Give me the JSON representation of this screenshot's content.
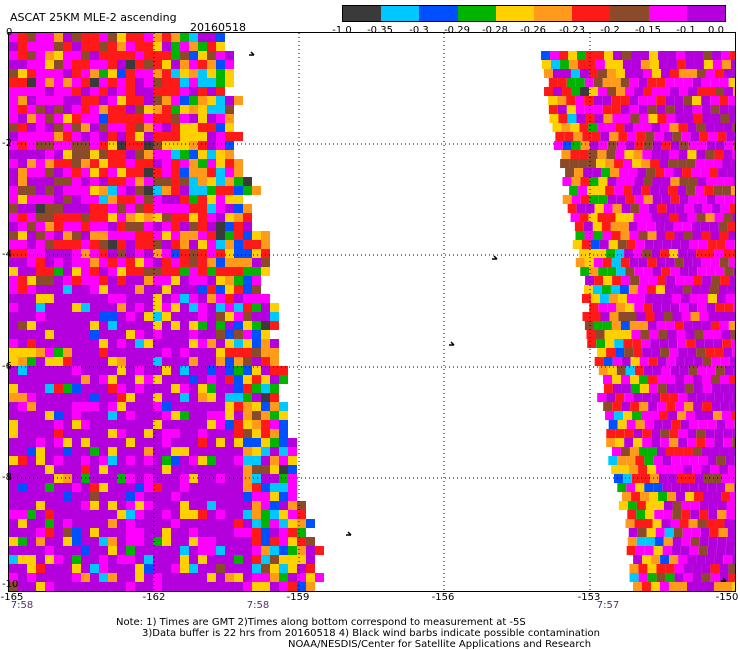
{
  "header": {
    "title": "ASCAT 25KM MLE-2 ascending",
    "date": "20160518"
  },
  "colorbar": {
    "labels": [
      "-1.0",
      "-0.35",
      "-0.3",
      "-0.29",
      "-0.28",
      "-0.26",
      "-0.23",
      "-0.2",
      "-0.15",
      "-0.1",
      "0.0"
    ],
    "colors": [
      "#3a3a3a",
      "#00c8ff",
      "#0050ff",
      "#00b400",
      "#ffd000",
      "#ff9a1a",
      "#ff1a1a",
      "#8b4a2a",
      "#ff00ff",
      "#b400dc"
    ]
  },
  "map": {
    "y_labels": [
      "0",
      "-2",
      "-4",
      "-6",
      "-8",
      "-10"
    ],
    "x_labels": [
      "-165",
      "-162",
      "-159",
      "-156",
      "-153",
      "-150"
    ],
    "lat_range": [
      -10,
      0
    ],
    "lon_range": [
      -165,
      -150
    ],
    "grid": "dotted",
    "times": [
      "7:58",
      "7:58",
      "7:57"
    ]
  },
  "notes": {
    "line1": "Note: 1) Times are GMT 2)Times along bottom correspond to measurement at -5S",
    "line2": "3)Data buffer is 22 hrs from 20160518 4) Black wind barbs indicate possible contamination",
    "line3": "NOAA/NESDIS/Center for Satellite Applications and Research"
  }
}
